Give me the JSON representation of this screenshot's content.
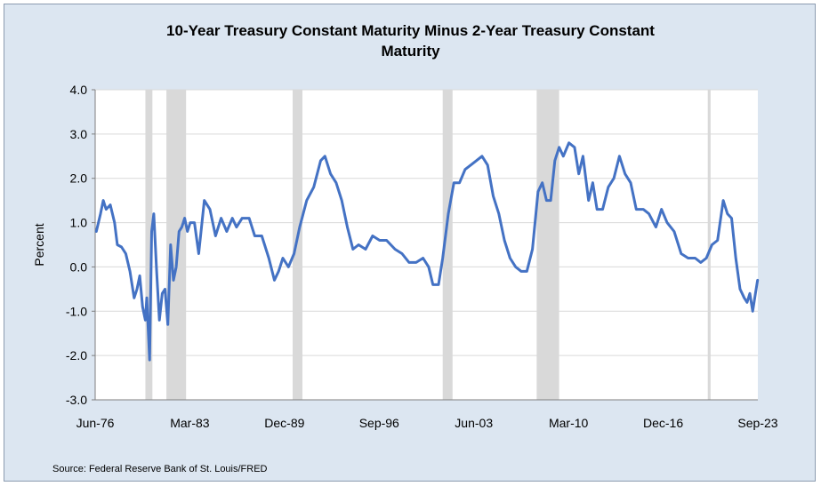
{
  "chart_data": {
    "type": "line",
    "title_line1": "10-Year Treasury Constant Maturity Minus 2-Year Treasury Constant",
    "title_line2": "Maturity",
    "ylabel": "Percent",
    "xlabel": "",
    "ylim": [
      -3.0,
      4.0
    ],
    "y_ticks": [
      "4.0",
      "3.0",
      "2.0",
      "1.0",
      "0.0",
      "-1.0",
      "-2.0",
      "-3.0"
    ],
    "x_ticks": [
      "Jun-76",
      "Mar-83",
      "Dec-89",
      "Sep-96",
      "Jun-03",
      "Mar-10",
      "Dec-16",
      "Sep-23"
    ],
    "xlim": [
      1976.42,
      2023.67
    ],
    "grid": "horizontal",
    "line_color": "#4472c4",
    "shading_color": "#d9d9d9",
    "recessions": [
      [
        1980.0,
        1980.5
      ],
      [
        1981.5,
        1982.9
      ],
      [
        1990.5,
        1991.2
      ],
      [
        2001.2,
        2001.9
      ],
      [
        2007.9,
        2009.5
      ],
      [
        2020.1,
        2020.3
      ]
    ],
    "series": [
      {
        "x": [
          1976.5,
          1976.8,
          1977.0,
          1977.2,
          1977.5,
          1977.8,
          1978.0,
          1978.3,
          1978.6,
          1978.9,
          1979.2,
          1979.4,
          1979.6,
          1979.8,
          1980.0,
          1980.1,
          1980.3,
          1980.45,
          1980.6,
          1980.8,
          1981.0,
          1981.2,
          1981.4,
          1981.6,
          1981.8,
          1982.0,
          1982.2,
          1982.4,
          1982.6,
          1982.8,
          1983.0,
          1983.2,
          1983.5,
          1983.8,
          1984.2,
          1984.6,
          1985.0,
          1985.4,
          1985.8,
          1986.2,
          1986.5,
          1986.9,
          1987.4,
          1987.8,
          1988.3,
          1988.8,
          1989.2,
          1989.5,
          1989.8,
          1990.2,
          1990.6,
          1991.0,
          1991.5,
          1992.0,
          1992.5,
          1992.8,
          1993.2,
          1993.6,
          1994.0,
          1994.4,
          1994.8,
          1995.2,
          1995.7,
          1996.2,
          1996.7,
          1997.2,
          1997.8,
          1998.3,
          1998.8,
          1999.3,
          1999.8,
          2000.2,
          2000.5,
          2000.9,
          2001.2,
          2001.6,
          2002.0,
          2002.4,
          2002.8,
          2003.2,
          2003.6,
          2004.0,
          2004.4,
          2004.8,
          2005.2,
          2005.6,
          2006.0,
          2006.4,
          2006.8,
          2007.2,
          2007.6,
          2008.0,
          2008.3,
          2008.6,
          2008.9,
          2009.2,
          2009.5,
          2009.8,
          2010.2,
          2010.6,
          2010.9,
          2011.2,
          2011.6,
          2011.9,
          2012.2,
          2012.6,
          2013.0,
          2013.4,
          2013.8,
          2014.2,
          2014.6,
          2015.0,
          2015.5,
          2015.9,
          2016.4,
          2016.8,
          2017.2,
          2017.7,
          2018.2,
          2018.7,
          2019.2,
          2019.6,
          2020.0,
          2020.4,
          2020.8,
          2021.2,
          2021.5,
          2021.8,
          2022.1,
          2022.4,
          2022.7,
          2022.9,
          2023.1,
          2023.3,
          2023.5,
          2023.65
        ],
        "values": [
          0.8,
          1.2,
          1.5,
          1.3,
          1.4,
          1.0,
          0.5,
          0.45,
          0.3,
          -0.1,
          -0.7,
          -0.5,
          -0.2,
          -0.9,
          -1.2,
          -0.7,
          -2.1,
          0.8,
          1.2,
          -0.1,
          -1.2,
          -0.6,
          -0.5,
          -1.3,
          0.5,
          -0.3,
          0.0,
          0.8,
          0.9,
          1.1,
          0.8,
          1.0,
          1.0,
          0.3,
          1.5,
          1.3,
          0.7,
          1.1,
          0.8,
          1.1,
          0.9,
          1.1,
          1.1,
          0.7,
          0.7,
          0.2,
          -0.3,
          -0.1,
          0.2,
          0.0,
          0.3,
          0.9,
          1.5,
          1.8,
          2.4,
          2.5,
          2.1,
          1.9,
          1.5,
          0.9,
          0.4,
          0.5,
          0.4,
          0.7,
          0.6,
          0.6,
          0.4,
          0.3,
          0.1,
          0.1,
          0.2,
          0.0,
          -0.4,
          -0.4,
          0.2,
          1.2,
          1.9,
          1.9,
          2.2,
          2.3,
          2.4,
          2.5,
          2.3,
          1.6,
          1.2,
          0.6,
          0.2,
          0.0,
          -0.1,
          -0.1,
          0.4,
          1.7,
          1.9,
          1.5,
          1.5,
          2.4,
          2.7,
          2.5,
          2.8,
          2.7,
          2.1,
          2.5,
          1.5,
          1.9,
          1.3,
          1.3,
          1.8,
          2.0,
          2.5,
          2.1,
          1.9,
          1.3,
          1.3,
          1.2,
          0.9,
          1.3,
          1.0,
          0.8,
          0.3,
          0.2,
          0.2,
          0.1,
          0.2,
          0.5,
          0.6,
          1.5,
          1.2,
          1.1,
          0.2,
          -0.5,
          -0.7,
          -0.8,
          -0.6,
          -1.0,
          -0.6,
          -0.3
        ]
      }
    ]
  },
  "source_note": "Source: Federal Reserve Bank of St. Louis/FRED"
}
